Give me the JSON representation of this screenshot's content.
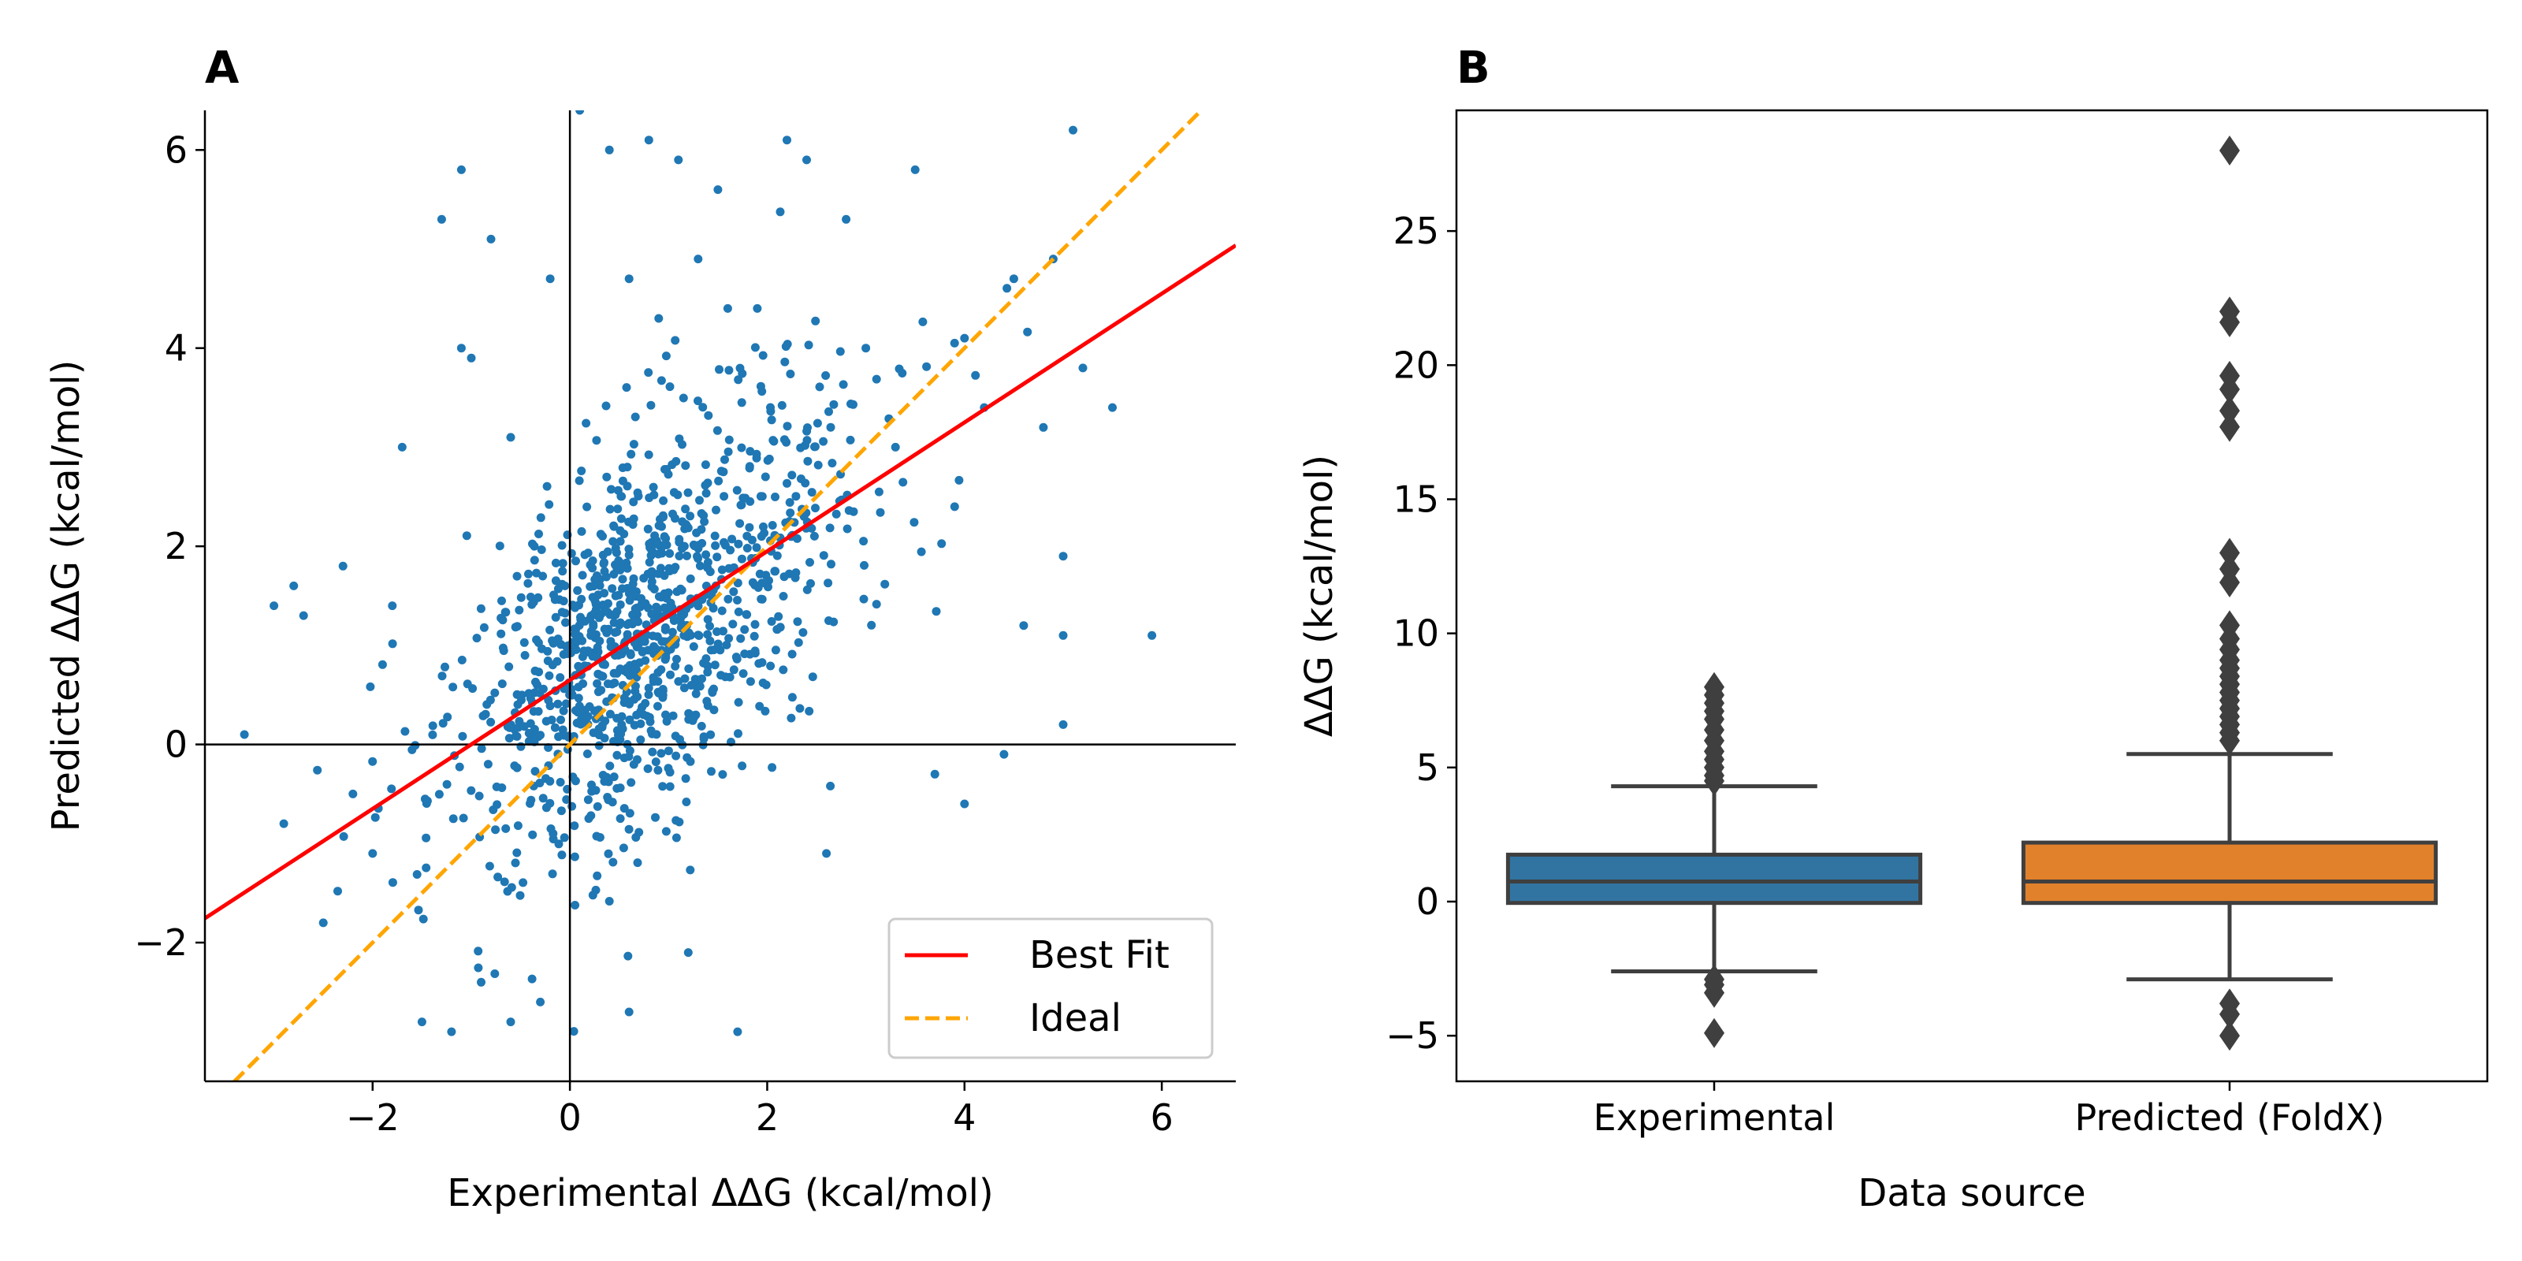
{
  "chart_data": [
    {
      "panel": "A",
      "type": "scatter",
      "title": "A",
      "xlabel": "Experimental ΔΔG (kcal/mol)",
      "ylabel": "Predicted ΔΔG (kcal/mol)",
      "xlim": [
        -3.7,
        6.75
      ],
      "ylim": [
        -3.4,
        6.4
      ],
      "xticks": [
        -2,
        0,
        2,
        4,
        6
      ],
      "yticks": [
        -2,
        0,
        2,
        4,
        6
      ],
      "tick_labels_x": [
        "−2",
        "0",
        "2",
        "4",
        "6"
      ],
      "tick_labels_y": [
        "−2",
        "0",
        "2",
        "4",
        "6"
      ],
      "reference_lines": {
        "x": 0,
        "y": 0
      },
      "point_color": "#1f77b4",
      "best_fit": {
        "slope": 0.65,
        "intercept": 0.65,
        "color": "#ff0000"
      },
      "ideal": {
        "slope": 1.0,
        "intercept": 0.0,
        "color": "#ffa500"
      },
      "legend": {
        "placement": "lower right",
        "entries": [
          {
            "label": "Best Fit",
            "color": "#ff0000",
            "style": "solid"
          },
          {
            "label": "Ideal",
            "color": "#ffa500",
            "style": "dashed"
          }
        ]
      },
      "outlier_points": [
        {
          "x": -3.3,
          "y": 0.1
        },
        {
          "x": -3.0,
          "y": 1.4
        },
        {
          "x": -2.9,
          "y": -0.8
        },
        {
          "x": -2.8,
          "y": 1.6
        },
        {
          "x": -2.7,
          "y": 1.3
        },
        {
          "x": -2.5,
          "y": -1.8
        },
        {
          "x": -2.3,
          "y": 1.8
        },
        {
          "x": -2.2,
          "y": -0.5
        },
        {
          "x": -1.8,
          "y": 1.4
        },
        {
          "x": -1.7,
          "y": 3.0
        },
        {
          "x": -1.5,
          "y": -2.8
        },
        {
          "x": -1.3,
          "y": 5.3
        },
        {
          "x": -1.1,
          "y": 5.8
        },
        {
          "x": -1.1,
          "y": 4.0
        },
        {
          "x": -1.0,
          "y": 3.9
        },
        {
          "x": -0.9,
          "y": -2.4
        },
        {
          "x": -0.8,
          "y": 5.1
        },
        {
          "x": -0.6,
          "y": -2.8
        },
        {
          "x": -0.3,
          "y": -2.6
        },
        {
          "x": -0.2,
          "y": 4.7
        },
        {
          "x": 0.1,
          "y": 6.4
        },
        {
          "x": 0.4,
          "y": 6.0
        },
        {
          "x": 0.6,
          "y": 4.7
        },
        {
          "x": 0.8,
          "y": 6.1
        },
        {
          "x": 0.9,
          "y": 4.3
        },
        {
          "x": 1.1,
          "y": 5.9
        },
        {
          "x": 1.3,
          "y": 4.9
        },
        {
          "x": 1.5,
          "y": 5.6
        },
        {
          "x": 1.6,
          "y": 4.4
        },
        {
          "x": 1.9,
          "y": 4.4
        },
        {
          "x": 2.2,
          "y": 6.1
        },
        {
          "x": 2.4,
          "y": 5.9
        },
        {
          "x": 2.8,
          "y": 5.3
        },
        {
          "x": 3.0,
          "y": 4.0
        },
        {
          "x": 3.5,
          "y": 5.8
        },
        {
          "x": 3.7,
          "y": -0.3
        },
        {
          "x": 3.9,
          "y": 2.4
        },
        {
          "x": 4.0,
          "y": 4.1
        },
        {
          "x": 4.2,
          "y": 3.4
        },
        {
          "x": 4.4,
          "y": -0.1
        },
        {
          "x": 4.5,
          "y": 4.7
        },
        {
          "x": 4.8,
          "y": 3.2
        },
        {
          "x": 4.9,
          "y": 4.9
        },
        {
          "x": 5.0,
          "y": 1.1
        },
        {
          "x": 5.0,
          "y": 0.2
        },
        {
          "x": 5.0,
          "y": 1.9
        },
        {
          "x": 5.1,
          "y": 6.2
        },
        {
          "x": 5.2,
          "y": 3.8
        },
        {
          "x": 5.5,
          "y": 3.4
        },
        {
          "x": 5.9,
          "y": 1.1
        },
        {
          "x": 0.6,
          "y": -2.7
        },
        {
          "x": 1.2,
          "y": -2.1
        },
        {
          "x": 1.7,
          "y": -2.9
        },
        {
          "x": -1.2,
          "y": -2.9
        },
        {
          "x": -2.0,
          "y": -1.1
        },
        {
          "x": 4.0,
          "y": -0.6
        },
        {
          "x": 2.6,
          "y": -1.1
        },
        {
          "x": 3.3,
          "y": 3.0
        },
        {
          "x": 4.6,
          "y": 1.2
        },
        {
          "x": -0.6,
          "y": 3.1
        }
      ]
    },
    {
      "panel": "B",
      "type": "box",
      "title": "B",
      "xlabel": "Data source",
      "ylabel": "ΔΔG (kcal/mol)",
      "ylim": [
        -6.7,
        29.5
      ],
      "yticks": [
        -5,
        0,
        5,
        10,
        15,
        20,
        25
      ],
      "tick_labels_y": [
        "−5",
        "0",
        "5",
        "10",
        "15",
        "20",
        "25"
      ],
      "categories": [
        "Experimental",
        "Predicted (FoldX)"
      ],
      "boxes": [
        {
          "label": "Experimental",
          "color": "#3274a1",
          "whisker_low": -2.6,
          "q1": -0.05,
          "median": 0.75,
          "q3": 1.75,
          "whisker_high": 4.3,
          "outliers": [
            4.5,
            4.7,
            5.0,
            5.3,
            5.6,
            6.0,
            6.4,
            6.8,
            7.1,
            7.4,
            7.7,
            8.0,
            -2.9,
            -3.1,
            -3.4,
            -4.9
          ]
        },
        {
          "label": "Predicted (FoldX)",
          "color": "#e1812c",
          "whisker_low": -2.9,
          "q1": -0.05,
          "median": 0.75,
          "q3": 2.2,
          "whisker_high": 5.5,
          "outliers": [
            6.0,
            6.3,
            6.6,
            6.9,
            7.2,
            7.5,
            7.8,
            8.1,
            8.4,
            8.7,
            9.0,
            9.4,
            9.8,
            10.3,
            11.9,
            12.4,
            13.0,
            17.7,
            18.3,
            19.1,
            19.6,
            21.6,
            22.0,
            28.0,
            -3.8,
            -4.2,
            -5.0
          ]
        }
      ]
    }
  ]
}
